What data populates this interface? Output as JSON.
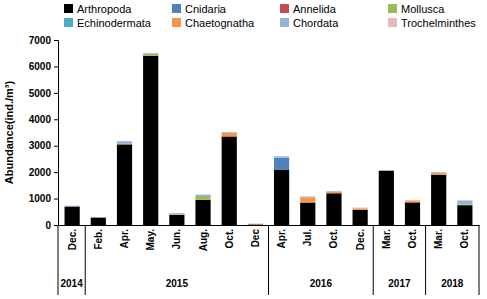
{
  "chart_data": {
    "type": "bar",
    "stacked": true,
    "y_label": "Abundance(ind./m³)",
    "categories": [
      "Dec.",
      "Feb.",
      "Apr.",
      "May.",
      "Jun.",
      "Aug.",
      "Oct.",
      "Dec",
      "Apr.",
      "Jul.",
      "Oct.",
      "Dec.",
      "Mar.",
      "Oct.",
      "Mar.",
      "Oct."
    ],
    "groups": [
      {
        "label": "2014",
        "count": 1
      },
      {
        "label": "2015",
        "count": 7
      },
      {
        "label": "2016",
        "count": 4
      },
      {
        "label": "2017",
        "count": 2
      },
      {
        "label": "2018",
        "count": 2
      }
    ],
    "series": [
      {
        "name": "Arthropoda",
        "color": "#000000",
        "values": [
          700,
          280,
          3050,
          6400,
          380,
          950,
          3350,
          20,
          2100,
          850,
          1200,
          580,
          2050,
          850,
          1900,
          750
        ]
      },
      {
        "name": "Cnidaria",
        "color": "#4f81bd",
        "values": [
          0,
          0,
          0,
          0,
          0,
          0,
          0,
          0,
          450,
          0,
          0,
          0,
          0,
          0,
          0,
          0
        ]
      },
      {
        "name": "Annelida",
        "color": "#c0504d",
        "values": [
          0,
          0,
          0,
          0,
          0,
          0,
          0,
          0,
          0,
          0,
          0,
          0,
          0,
          30,
          0,
          0
        ]
      },
      {
        "name": "Mollusca",
        "color": "#9bbb59",
        "values": [
          0,
          0,
          0,
          80,
          0,
          150,
          0,
          0,
          0,
          0,
          0,
          0,
          0,
          0,
          0,
          30
        ]
      },
      {
        "name": "Echinodermata",
        "color": "#4bacc6",
        "values": [
          0,
          0,
          0,
          0,
          0,
          0,
          0,
          0,
          0,
          0,
          0,
          0,
          0,
          0,
          0,
          0
        ]
      },
      {
        "name": "Chaetognatha",
        "color": "#f79646",
        "values": [
          0,
          0,
          20,
          0,
          20,
          0,
          150,
          30,
          0,
          200,
          50,
          50,
          0,
          50,
          80,
          0
        ]
      },
      {
        "name": "Chordata",
        "color": "#95b3d7",
        "values": [
          30,
          10,
          100,
          30,
          50,
          50,
          20,
          0,
          50,
          30,
          30,
          0,
          30,
          0,
          20,
          150
        ]
      },
      {
        "name": "Trochelminthes",
        "color": "#e6b9b8",
        "values": [
          0,
          0,
          0,
          0,
          0,
          0,
          0,
          0,
          0,
          0,
          0,
          30,
          0,
          0,
          0,
          0
        ]
      }
    ],
    "ylim": [
      0,
      7000
    ],
    "yticks": [
      0,
      1000,
      2000,
      3000,
      4000,
      5000,
      6000,
      7000
    ],
    "legend": "top",
    "grid": false
  }
}
